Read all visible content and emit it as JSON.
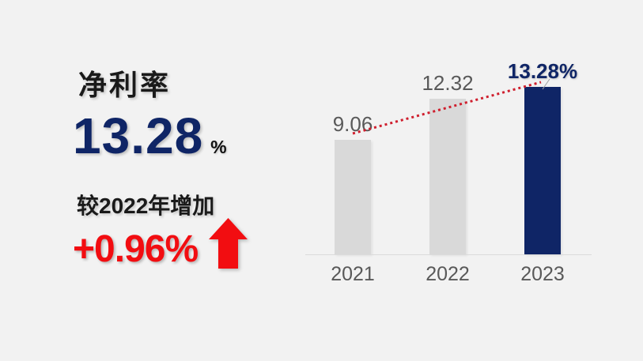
{
  "panel": {
    "title": "净利率",
    "value": "13.28",
    "unit": "%",
    "delta_caption": "较2022年增加",
    "delta_value": "+0.96%"
  },
  "chart_data": {
    "type": "bar",
    "categories": [
      "2021",
      "2022",
      "2023"
    ],
    "values": [
      9.06,
      12.32,
      13.28
    ],
    "value_labels": [
      "9.06",
      "12.32",
      "13.28%"
    ],
    "value_label_colors": [
      "#595959",
      "#595959",
      "#0f2566"
    ],
    "bar_colors": [
      "#d9d9d9",
      "#d9d9d9",
      "#0f2566"
    ],
    "highlight_index": 2,
    "ylim": [
      0,
      13.28
    ],
    "grid": false,
    "legend": false,
    "trendline": {
      "style": "dotted",
      "color": "#cf1f2e",
      "from_value": 9.06,
      "to_value": 13.28
    }
  },
  "colors": {
    "background": "#f2f2f2",
    "navy": "#0f2566",
    "red": "#f20d11",
    "dotted_red": "#cf1f2e",
    "bar_gray": "#d9d9d9",
    "label_gray": "#595959",
    "text_black": "#1a1a1a",
    "axis_line": "#dbdbdb"
  }
}
